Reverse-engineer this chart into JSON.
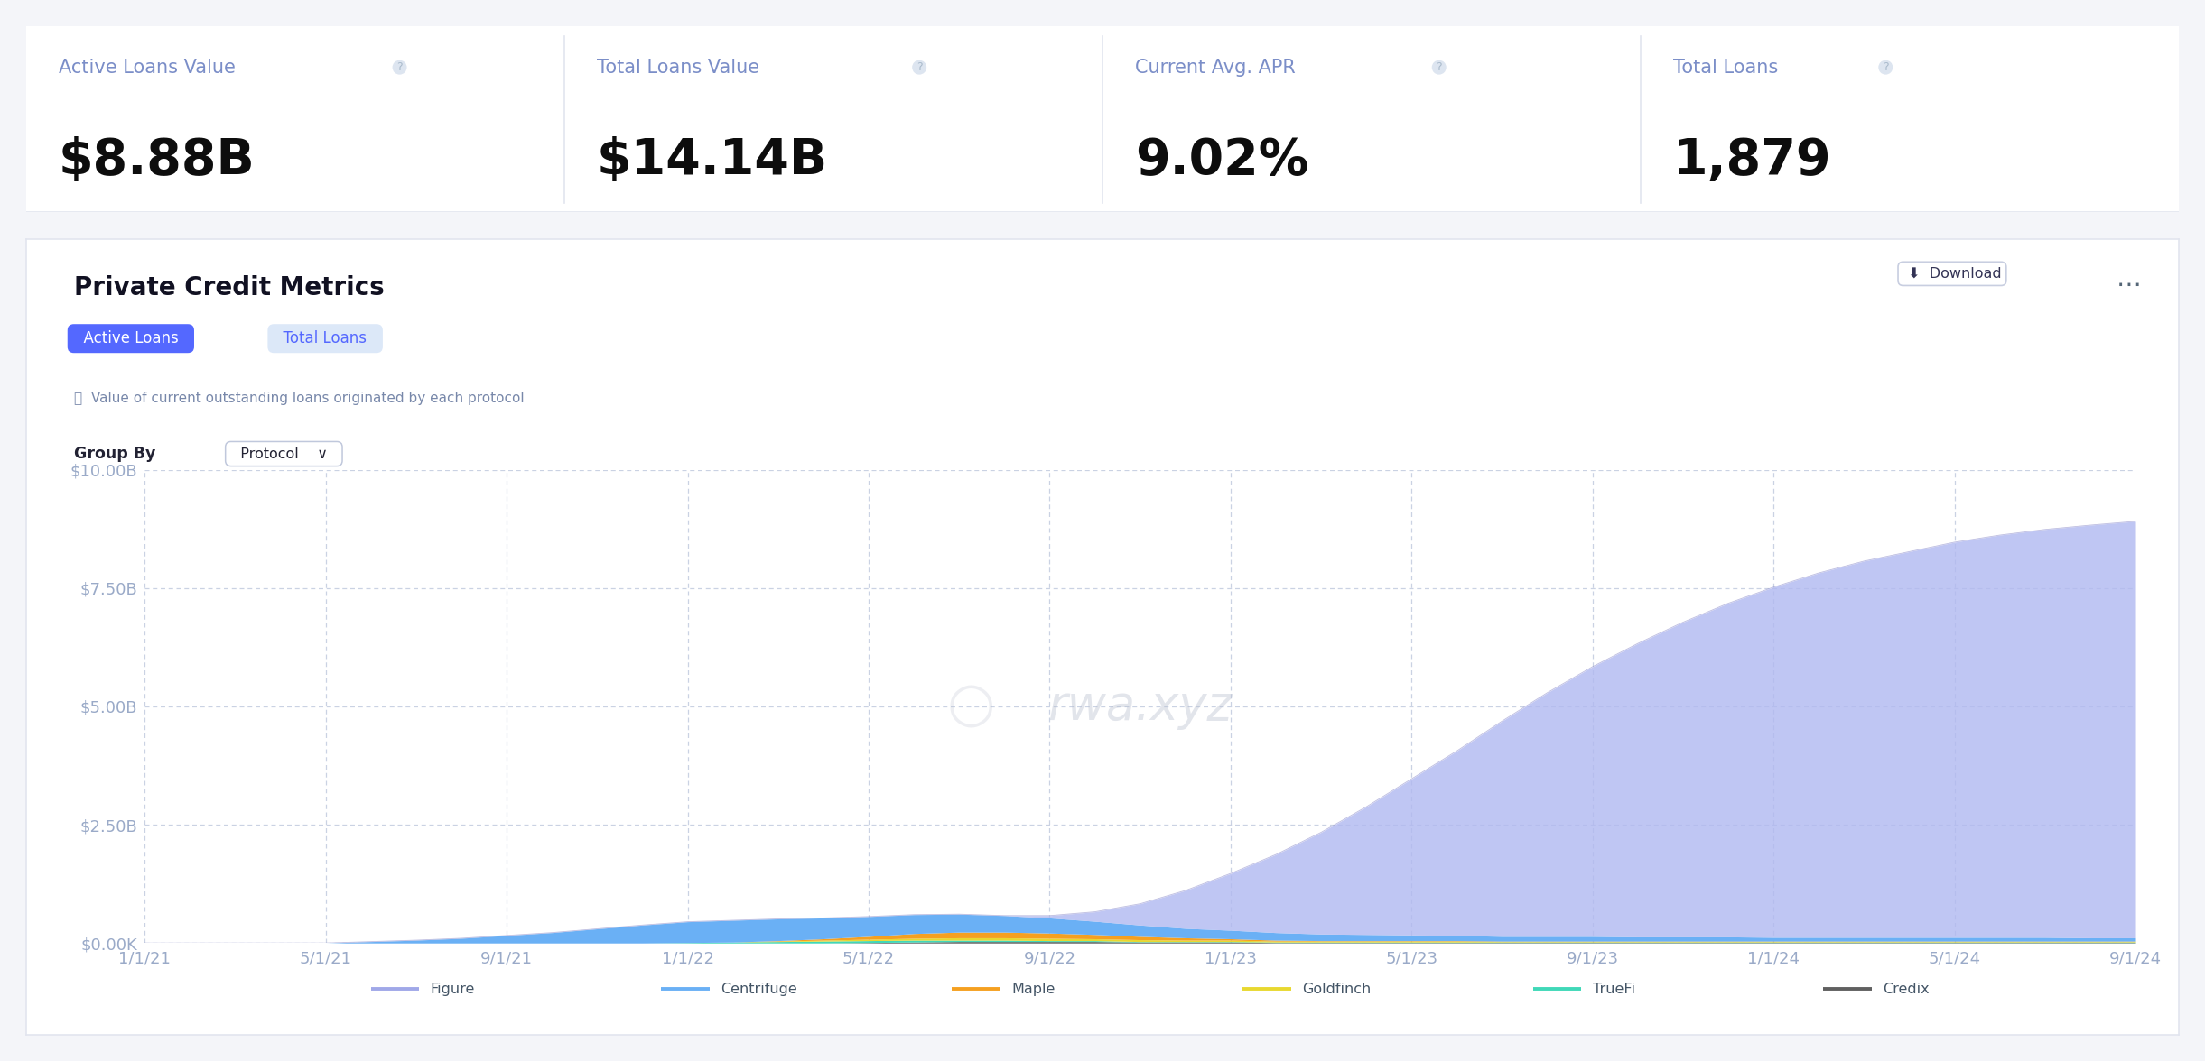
{
  "bg_color": "#f4f5f9",
  "panel_bg": "#ffffff",
  "top_bg": "#ffffff",
  "title": "Private Credit Metrics",
  "subtitle": "Value of current outstanding loans originated by each protocol",
  "metrics": [
    {
      "label": "Active Loans Value",
      "value": "$8.88B"
    },
    {
      "label": "Total Loans Value",
      "value": "$14.14B"
    },
    {
      "label": "Current Avg. APR",
      "value": "9.02%"
    },
    {
      "label": "Total Loans",
      "value": "1,879"
    }
  ],
  "metric_label_color": "#7b8ec8",
  "metric_value_color": "#0d0d0d",
  "metric_label_size": 15,
  "metric_value_size": 40,
  "btn_active_bg": "#5468ff",
  "btn_active_fg": "#ffffff",
  "btn_inactive_bg": "#dce8f8",
  "btn_inactive_fg": "#5468ff",
  "ytick_labels": [
    "$0.00K",
    "$2.50B",
    "$5.00B",
    "$7.50B",
    "$10.00B"
  ],
  "ytick_values": [
    0,
    2.5,
    5.0,
    7.5,
    10.0
  ],
  "xtick_labels": [
    "1/1/21",
    "5/1/21",
    "9/1/21",
    "1/1/22",
    "5/1/22",
    "9/1/22",
    "1/1/23",
    "5/1/23",
    "9/1/23",
    "1/1/24",
    "5/1/24",
    "9/1/24"
  ],
  "xtick_positions": [
    0,
    4,
    8,
    12,
    16,
    20,
    24,
    28,
    32,
    36,
    40,
    44
  ],
  "grid_color": "#c5cde0",
  "watermark": "rwa.xyz",
  "watermark_color": "#b8bece",
  "panel_border_color": "#e2e5ef",
  "tick_color": "#9aaac8",
  "tick_fontsize": 13,
  "legend_items": [
    {
      "label": "Figure",
      "color": "#a0a8e8"
    },
    {
      "label": "Centrifuge",
      "color": "#6ab0f5"
    },
    {
      "label": "Maple",
      "color": "#f5a020"
    },
    {
      "label": "Goldfinch",
      "color": "#e8d830"
    },
    {
      "label": "TrueFi",
      "color": "#40d8b8"
    },
    {
      "label": "Credix",
      "color": "#606060"
    }
  ]
}
